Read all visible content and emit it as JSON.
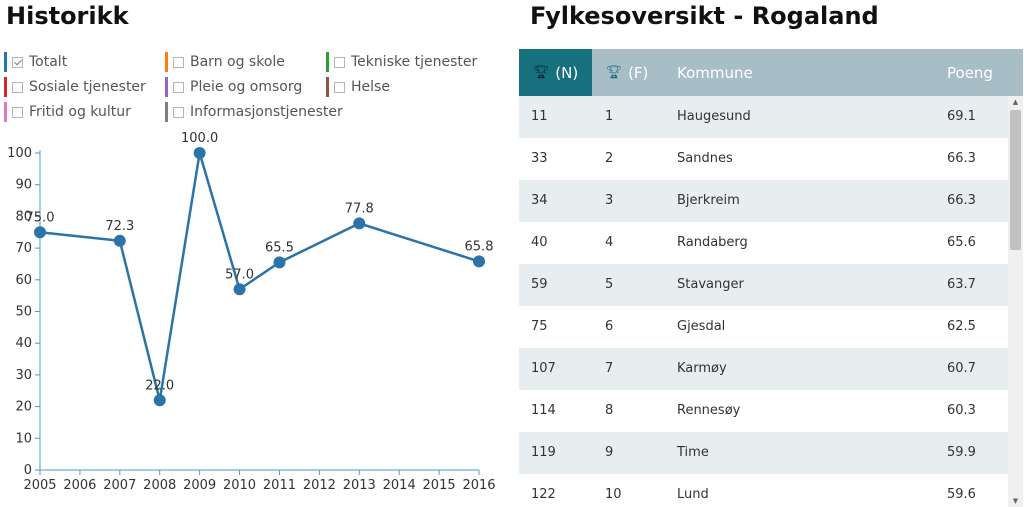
{
  "left_title": "Historikk",
  "right_title": "Fylkesoversikt - Rogaland",
  "legend": [
    {
      "label": "Totalt",
      "color": "#1f77b4",
      "checked": true
    },
    {
      "label": "Barn og skole",
      "color": "#ff7f0e",
      "checked": false
    },
    {
      "label": "Tekniske tjenester",
      "color": "#2ca02c",
      "checked": false
    },
    {
      "label": "Sosiale tjenester",
      "color": "#d62728",
      "checked": false
    },
    {
      "label": "Pleie og omsorg",
      "color": "#9467bd",
      "checked": false
    },
    {
      "label": "Helse",
      "color": "#8c564b",
      "checked": false
    },
    {
      "label": "Fritid og kultur",
      "color": "#e377c2",
      "checked": false
    },
    {
      "label": "Informasjonstjenester",
      "color": "#7f7f7f",
      "checked": false
    }
  ],
  "chart_data": {
    "type": "line",
    "title": "",
    "xlabel": "",
    "ylabel": "",
    "xlim": [
      2005,
      2016
    ],
    "ylim": [
      0,
      100
    ],
    "x_ticks": [
      2005,
      2006,
      2007,
      2008,
      2009,
      2010,
      2011,
      2012,
      2013,
      2014,
      2015,
      2016
    ],
    "y_ticks": [
      0,
      10,
      20,
      30,
      40,
      50,
      60,
      70,
      80,
      90,
      100
    ],
    "grid": false,
    "series": [
      {
        "name": "Totalt",
        "color": "#2b73a8",
        "points": [
          {
            "x": 2005,
            "y": 75.0,
            "label": "75.0"
          },
          {
            "x": 2007,
            "y": 72.3,
            "label": "72.3"
          },
          {
            "x": 2008,
            "y": 22.0,
            "label": "22.0"
          },
          {
            "x": 2009,
            "y": 100.0,
            "label": "100.0"
          },
          {
            "x": 2010,
            "y": 57.0,
            "label": "57.0"
          },
          {
            "x": 2011,
            "y": 65.5,
            "label": "65.5"
          },
          {
            "x": 2013,
            "y": 77.8,
            "label": "77.8"
          },
          {
            "x": 2016,
            "y": 65.8,
            "label": "65.8"
          }
        ]
      }
    ]
  },
  "table": {
    "headers": {
      "n": "(N)",
      "f": "(F)",
      "kommune": "Kommune",
      "poeng": "Poeng"
    },
    "header_icon": "trophy-icon",
    "rows": [
      {
        "n": "11",
        "f": "1",
        "kommune": "Haugesund",
        "poeng": "69.1"
      },
      {
        "n": "33",
        "f": "2",
        "kommune": "Sandnes",
        "poeng": "66.3"
      },
      {
        "n": "34",
        "f": "3",
        "kommune": "Bjerkreim",
        "poeng": "66.3"
      },
      {
        "n": "40",
        "f": "4",
        "kommune": "Randaberg",
        "poeng": "65.6"
      },
      {
        "n": "59",
        "f": "5",
        "kommune": "Stavanger",
        "poeng": "63.7"
      },
      {
        "n": "75",
        "f": "6",
        "kommune": "Gjesdal",
        "poeng": "62.5"
      },
      {
        "n": "107",
        "f": "7",
        "kommune": "Karmøy",
        "poeng": "60.7"
      },
      {
        "n": "114",
        "f": "8",
        "kommune": "Rennesøy",
        "poeng": "60.3"
      },
      {
        "n": "119",
        "f": "9",
        "kommune": "Time",
        "poeng": "59.9"
      },
      {
        "n": "122",
        "f": "10",
        "kommune": "Lund",
        "poeng": "59.6"
      }
    ]
  },
  "scroll_icons": {
    "up": "scroll-up-arrow-icon",
    "down": "scroll-down-arrow-icon"
  }
}
